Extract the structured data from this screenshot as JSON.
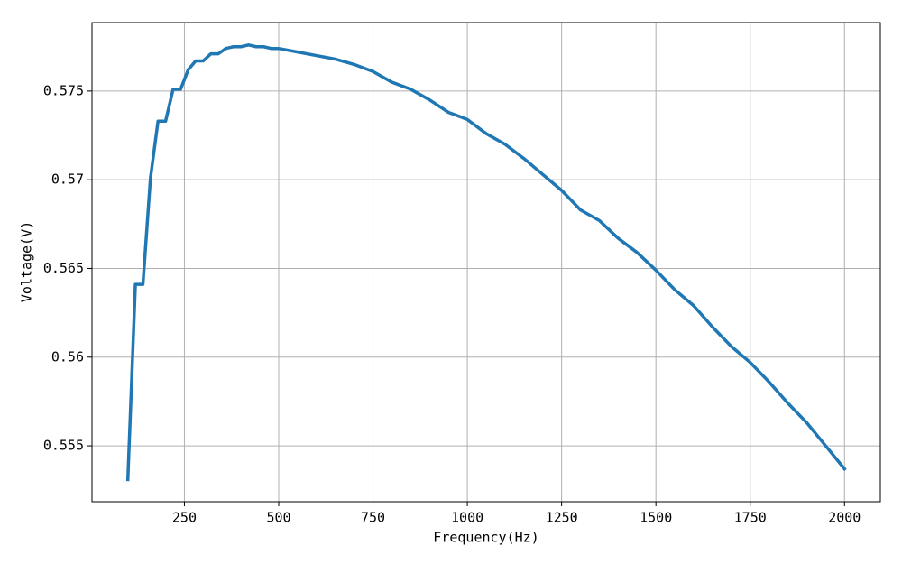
{
  "chart_data": {
    "type": "line",
    "x_label": "Frequency(Hz)",
    "y_label": "Voltage(V)",
    "x": [
      100,
      120,
      140,
      160,
      180,
      200,
      220,
      240,
      260,
      280,
      300,
      320,
      340,
      360,
      380,
      400,
      420,
      440,
      460,
      480,
      500,
      550,
      600,
      650,
      700,
      750,
      800,
      850,
      900,
      950,
      1000,
      1050,
      1100,
      1150,
      1200,
      1250,
      1300,
      1350,
      1400,
      1450,
      1500,
      1550,
      1600,
      1650,
      1700,
      1750,
      1800,
      1850,
      1900,
      1950,
      2000
    ],
    "series": [
      {
        "name": "Voltage",
        "color": "#1f77b4",
        "values": [
          0.5531,
          0.5641,
          0.5641,
          0.5701,
          0.5733,
          0.5733,
          0.5751,
          0.5751,
          0.5762,
          0.5767,
          0.5767,
          0.5771,
          0.5771,
          0.5774,
          0.5775,
          0.5775,
          0.5776,
          0.5775,
          0.5775,
          0.5774,
          0.5774,
          0.5772,
          0.577,
          0.5768,
          0.5765,
          0.5761,
          0.5755,
          0.5751,
          0.5745,
          0.5738,
          0.5734,
          0.5726,
          0.572,
          0.5712,
          0.5703,
          0.5694,
          0.5683,
          0.5677,
          0.5667,
          0.5659,
          0.5649,
          0.5638,
          0.5629,
          0.5617,
          0.5606,
          0.5597,
          0.5586,
          0.5574,
          0.5563,
          0.555,
          0.5537
        ]
      }
    ],
    "xlim": [
      5,
      2095
    ],
    "ylim": [
      0.55185,
      0.57886
    ],
    "xticks": [
      250,
      500,
      750,
      1000,
      1250,
      1500,
      1750,
      2000
    ],
    "yticks": [
      0.555,
      0.56,
      0.565,
      0.57,
      0.575
    ],
    "grid": true
  }
}
